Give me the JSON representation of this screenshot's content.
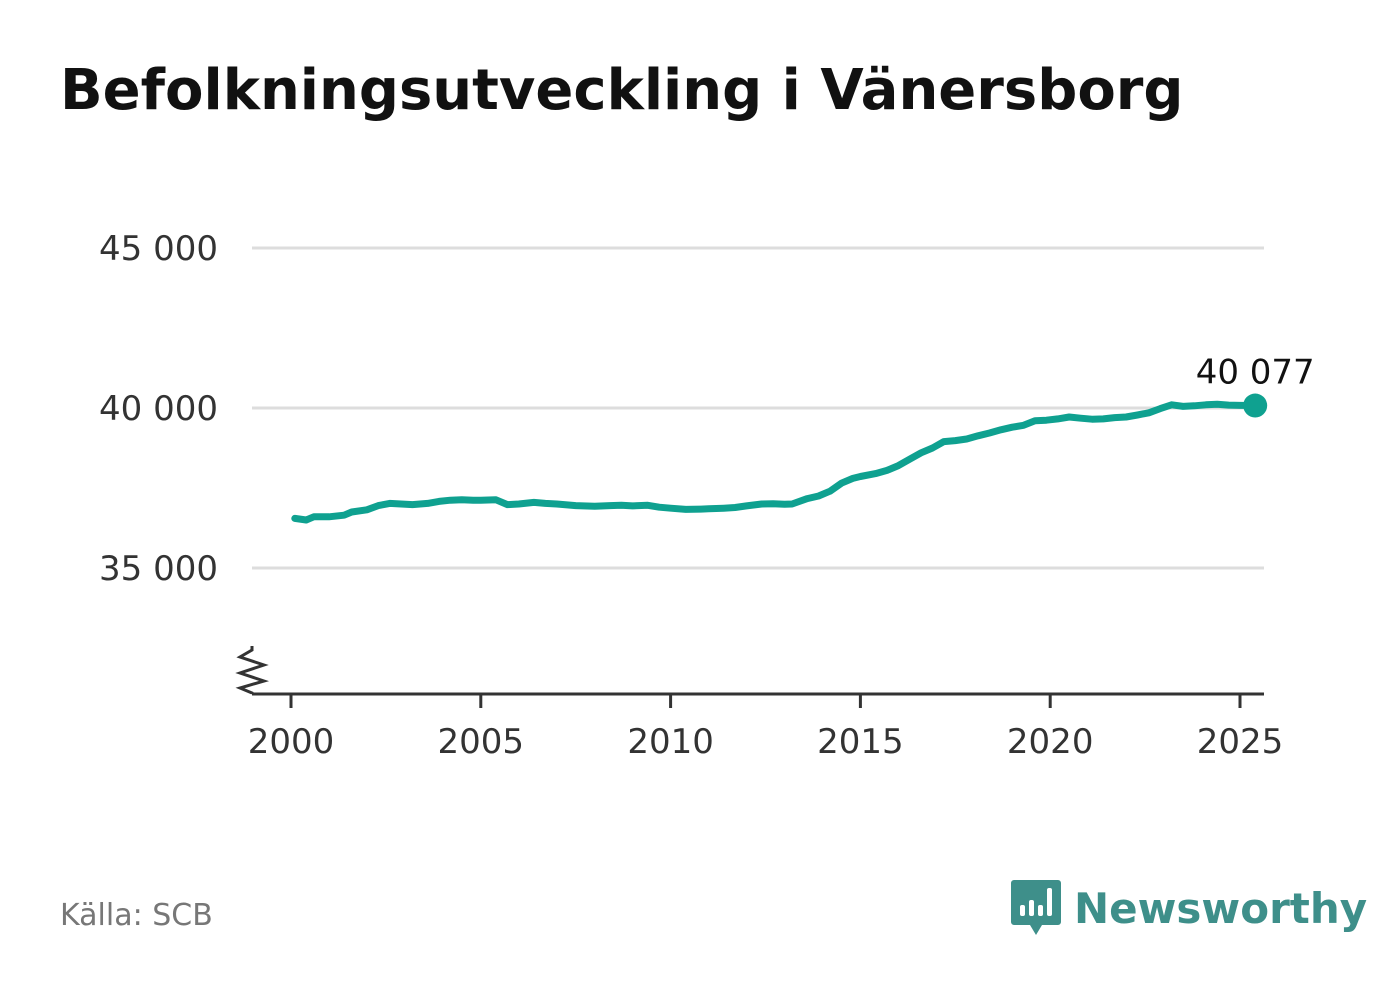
{
  "title": "Befolkningsutveckling i Vänersborg",
  "source": "Källa: SCB",
  "brand": "Newsworthy",
  "brand_icon": "bar-chart-speech-bubble-icon",
  "colors": {
    "line": "#0fa190",
    "grid": "#dddddd",
    "axis": "#333333",
    "brand": "#3e8f8a"
  },
  "chart_data": {
    "type": "line",
    "title": "Befolkningsutveckling i Vänersborg",
    "xlabel": "",
    "ylabel": "",
    "xlim": [
      1999.9,
      2026.7
    ],
    "ylim": [
      31000,
      45000
    ],
    "y_ticks": [
      35000,
      40000,
      45000
    ],
    "y_tick_labels": [
      "35 000",
      "40 000",
      "45 000"
    ],
    "x_ticks": [
      2000,
      2005,
      2010,
      2015,
      2020,
      2025
    ],
    "x_tick_labels": [
      "2000",
      "2005",
      "2010",
      "2015",
      "2020",
      "2025"
    ],
    "y_axis_break": true,
    "grid": true,
    "end_label": "40 077",
    "series": [
      {
        "x": [
          2000.1,
          2000.4,
          2000.6,
          2001.0,
          2001.4,
          2001.6,
          2002.0,
          2002.3,
          2002.6,
          2002.9,
          2003.2,
          2003.6,
          2003.9,
          2004.2,
          2004.5,
          2004.8,
          2005.0,
          2005.4,
          2005.7,
          2006.0,
          2006.4,
          2006.7,
          2007.0,
          2007.5,
          2008.0,
          2008.4,
          2008.7,
          2009.0,
          2009.4,
          2009.7,
          2010.0,
          2010.4,
          2010.8,
          2011.0,
          2011.4,
          2011.7,
          2012.0,
          2012.4,
          2012.7,
          2013.0,
          2013.2,
          2013.6,
          2013.9,
          2014.2,
          2014.5,
          2014.8,
          2015.0,
          2015.4,
          2015.7,
          2016.0,
          2016.3,
          2016.6,
          2016.9,
          2017.2,
          2017.5,
          2017.8,
          2018.1,
          2018.4,
          2018.7,
          2019.0,
          2019.3,
          2019.6,
          2019.9,
          2020.2,
          2020.5,
          2020.8,
          2021.1,
          2021.4,
          2021.7,
          2022.0,
          2022.3,
          2022.6,
          2022.9,
          2023.2,
          2023.5,
          2023.8,
          2024.1,
          2024.4,
          2024.7,
          2025.0,
          2025.4
        ],
        "y": [
          36550,
          36500,
          36600,
          36600,
          36650,
          36750,
          36820,
          36950,
          37020,
          37000,
          36980,
          37020,
          37080,
          37120,
          37130,
          37120,
          37120,
          37130,
          36980,
          37000,
          37050,
          37020,
          37000,
          36950,
          36930,
          36950,
          36960,
          36940,
          36960,
          36900,
          36870,
          36830,
          36840,
          36850,
          36870,
          36890,
          36940,
          37000,
          37010,
          36990,
          37000,
          37170,
          37250,
          37400,
          37650,
          37800,
          37860,
          37950,
          38050,
          38200,
          38400,
          38600,
          38750,
          38950,
          38980,
          39030,
          39130,
          39220,
          39320,
          39400,
          39460,
          39600,
          39620,
          39660,
          39720,
          39680,
          39650,
          39660,
          39700,
          39720,
          39780,
          39850,
          39980,
          40100,
          40050,
          40070,
          40100,
          40120,
          40090,
          40080,
          40077
        ]
      }
    ]
  }
}
